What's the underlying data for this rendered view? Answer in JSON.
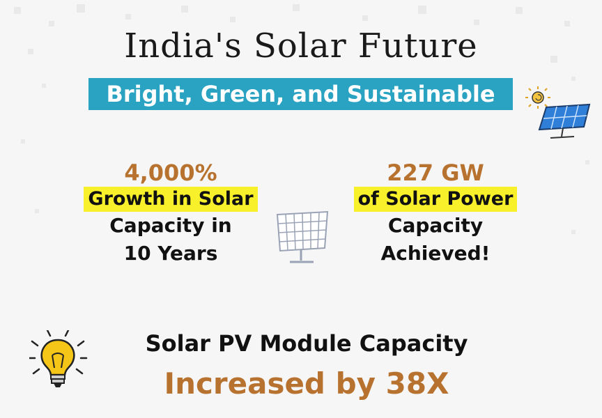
{
  "header": {
    "title": "India's Solar Future",
    "subtitle": "Bright, Green, and Sustainable"
  },
  "stats": [
    {
      "value": "4,000%",
      "highlight": "Growth in Solar",
      "line1": "Capacity in",
      "line2": "10 Years"
    },
    {
      "value": "227 GW",
      "highlight": "of Solar Power",
      "line1": "Capacity",
      "line2": "Achieved!"
    }
  ],
  "footer": {
    "line1": "Solar PV Module Capacity",
    "line2": "Increased by 38X"
  },
  "icons": [
    "solar-panel-sun-icon",
    "solar-panel-icon",
    "lightbulb-icon"
  ],
  "colors": {
    "subtitle_bg": "#2aa3c2",
    "highlight": "#f7f02a",
    "accent_brown": "#b8722f",
    "panel_blue": "#2f7fd8"
  }
}
